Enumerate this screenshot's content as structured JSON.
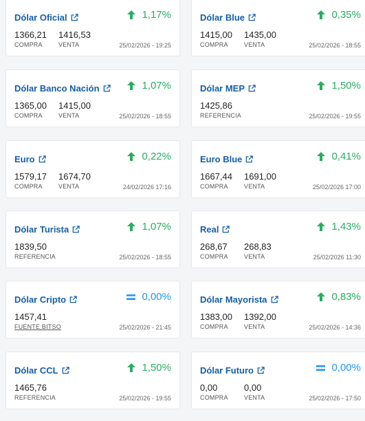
{
  "colors": {
    "title": "#145ea8",
    "up": "#27ae60",
    "flat": "#2196f3"
  },
  "cards": [
    {
      "title": "Dólar Oficial",
      "change": "1,17%",
      "trend": "up",
      "v1": "1366,21",
      "l1": "COMPRA",
      "v2": "1416,53",
      "l2": "VENTA",
      "date": "25/02/2026 - 19:25"
    },
    {
      "title": "Dólar Blue",
      "change": "0,35%",
      "trend": "up",
      "v1": "1415,00",
      "l1": "COMPRA",
      "v2": "1435,00",
      "l2": "VENTA",
      "date": "25/02/2026 - 18:55"
    },
    {
      "title": "Dólar Banco Nación",
      "change": "1,07%",
      "trend": "up",
      "v1": "1365,00",
      "l1": "COMPRA",
      "v2": "1415,00",
      "l2": "VENTA",
      "date": "25/02/2026 - 18:55"
    },
    {
      "title": "Dólar MEP",
      "change": "1,50%",
      "trend": "up",
      "v1": "1425,86",
      "l1": "REFERENCIA",
      "v2": "",
      "l2": "",
      "date": "25/02/2026 - 19:55"
    },
    {
      "title": "Euro",
      "change": "0,22%",
      "trend": "up",
      "v1": "1579,17",
      "l1": "COMPRA",
      "v2": "1674,70",
      "l2": "VENTA",
      "date": "24/02/2026 17:16"
    },
    {
      "title": "Euro Blue",
      "change": "0,41%",
      "trend": "up",
      "v1": "1667,44",
      "l1": "COMPRA",
      "v2": "1691,00",
      "l2": "VENTA",
      "date": "25/02/2026 17:00"
    },
    {
      "title": "Dólar Turista",
      "change": "1,07%",
      "trend": "up",
      "v1": "1839,50",
      "l1": "REFERENCIA",
      "v2": "",
      "l2": "",
      "date": "25/02/2026 - 18:55"
    },
    {
      "title": "Real",
      "change": "1,43%",
      "trend": "up",
      "v1": "268,67",
      "l1": "COMPRA",
      "v2": "268,83",
      "l2": "VENTA",
      "date": "25/02/2026 11:30"
    },
    {
      "title": "Dólar Cripto",
      "change": "0,00%",
      "trend": "flat",
      "v1": "1457,41",
      "l1": "FUENTE BITSO",
      "v2": "",
      "l2": "",
      "date": "25/02/2026 - 21:45"
    },
    {
      "title": "Dólar Mayorista",
      "change": "0,83%",
      "trend": "up",
      "v1": "1383,00",
      "l1": "COMPRA",
      "v2": "1392,00",
      "l2": "VENTA",
      "date": "25/02/2026 - 14:36"
    },
    {
      "title": "Dólar CCL",
      "change": "1,50%",
      "trend": "up",
      "v1": "1465,76",
      "l1": "REFERENCIA",
      "v2": "",
      "l2": "",
      "date": "25/02/2026 - 19:55"
    },
    {
      "title": "Dólar Futuro",
      "change": "0,00%",
      "trend": "flat",
      "v1": "0,00",
      "l1": "COMPRA",
      "v2": "0,00",
      "l2": "VENTA",
      "date": "25/02/2026 - 17:50"
    }
  ]
}
